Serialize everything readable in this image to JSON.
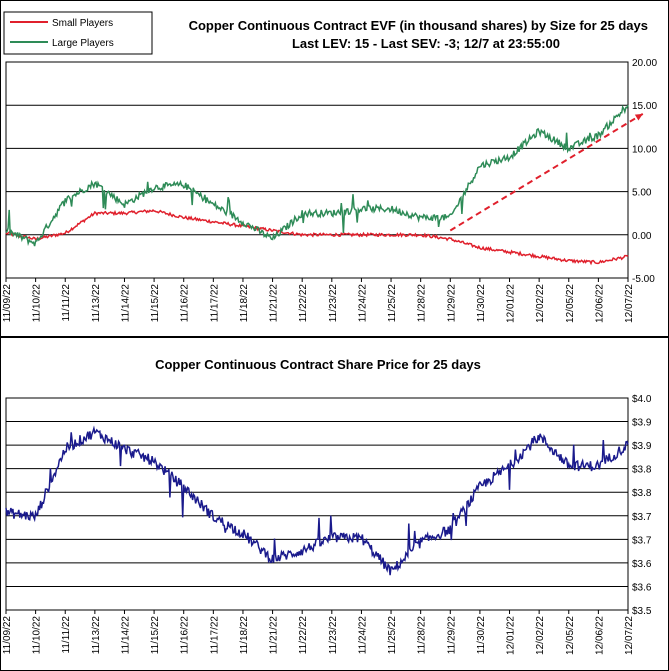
{
  "colors": {
    "small": "#e0202c",
    "large": "#2e8b57",
    "price": "#1a1a8c",
    "trend": "#e0202c"
  },
  "chart_data": [
    {
      "type": "line",
      "title": "Copper Continuous Contract EVF (in thousand shares) by Size for 25 days",
      "subtitle": "Last LEV: 15 - Last SEV: -3; 12/7 at 23:55:00",
      "categories": [
        "11/09/22",
        "11/10/22",
        "11/11/22",
        "11/13/22",
        "11/14/22",
        "11/15/22",
        "11/16/22",
        "11/17/22",
        "11/18/22",
        "11/21/22",
        "11/22/22",
        "11/23/22",
        "11/24/22",
        "11/25/22",
        "11/28/22",
        "11/29/22",
        "11/30/22",
        "12/01/22",
        "12/02/22",
        "12/05/22",
        "12/06/22",
        "12/07/22"
      ],
      "ylim": [
        -5,
        20
      ],
      "yticks": [
        "-5.00",
        "0.00",
        "5.00",
        "10.00",
        "15.00",
        "20.00"
      ],
      "grid": true,
      "legend": "top-left",
      "series": [
        {
          "name": "Small Players",
          "values": [
            0.2,
            -0.5,
            0.2,
            2.5,
            2.5,
            2.8,
            2.0,
            1.5,
            1.0,
            0.5,
            0.0,
            0.0,
            0.0,
            0.0,
            0.0,
            -0.5,
            -1.5,
            -2.0,
            -2.5,
            -3.0,
            -3.2,
            -2.5
          ]
        },
        {
          "name": "Large Players",
          "values": [
            0.5,
            -1.0,
            4.0,
            6.0,
            3.5,
            5.5,
            5.8,
            3.5,
            1.5,
            -0.5,
            2.5,
            2.5,
            3.0,
            3.0,
            2.0,
            2.0,
            8.0,
            9.0,
            12.0,
            10.0,
            11.5,
            15.0
          ]
        }
      ],
      "annotations": [
        {
          "type": "trend-arrow",
          "from": [
            15,
            0.5
          ],
          "to": [
            21.5,
            14
          ]
        }
      ]
    },
    {
      "type": "line",
      "title": "Copper Continuous Contract Share Price for 25 days",
      "categories": [
        "11/09/22",
        "11/10/22",
        "11/11/22",
        "11/13/22",
        "11/14/22",
        "11/15/22",
        "11/16/22",
        "11/17/22",
        "11/18/22",
        "11/21/22",
        "11/22/22",
        "11/23/22",
        "11/24/22",
        "11/25/22",
        "11/28/22",
        "11/29/22",
        "11/30/22",
        "12/01/22",
        "12/02/22",
        "12/05/22",
        "12/06/22",
        "12/07/22"
      ],
      "ylim": [
        3.5,
        4.0
      ],
      "yticks": [
        "$3.5",
        "$3.6",
        "$3.6",
        "$3.7",
        "$3.7",
        "$3.8",
        "$3.8",
        "$3.9",
        "$3.9",
        "$4.0"
      ],
      "grid": true,
      "series": [
        {
          "name": "",
          "values": [
            3.73,
            3.72,
            3.88,
            3.92,
            3.88,
            3.85,
            3.79,
            3.72,
            3.68,
            3.62,
            3.64,
            3.67,
            3.67,
            3.59,
            3.66,
            3.69,
            3.79,
            3.84,
            3.91,
            3.84,
            3.84,
            3.89
          ]
        }
      ]
    }
  ]
}
